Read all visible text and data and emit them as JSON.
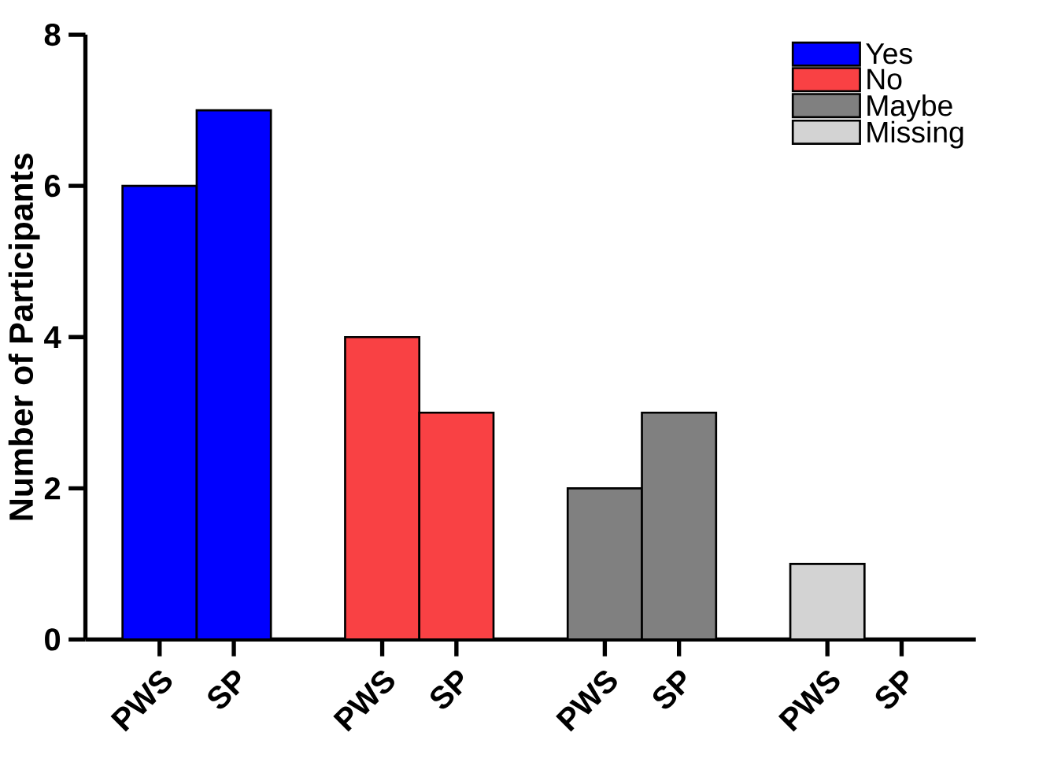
{
  "chart_data": {
    "type": "bar",
    "ylabel": "Number of Participants",
    "categories": [
      "PWS",
      "SP",
      "PWS",
      "SP",
      "PWS",
      "SP",
      "PWS",
      "SP"
    ],
    "series": [
      {
        "name": "Yes",
        "color": "#0000ff",
        "values": [
          6,
          7,
          null,
          null,
          null,
          null,
          null,
          null
        ]
      },
      {
        "name": "No",
        "color": "#f94144",
        "values": [
          null,
          null,
          4,
          3,
          null,
          null,
          null,
          null
        ]
      },
      {
        "name": "Maybe",
        "color": "#808080",
        "values": [
          null,
          null,
          null,
          null,
          2,
          3,
          null,
          null
        ]
      },
      {
        "name": "Missing",
        "color": "#d3d3d3",
        "values": [
          null,
          null,
          null,
          null,
          null,
          null,
          1,
          null
        ]
      }
    ],
    "ylim": [
      0,
      8
    ],
    "yticks": [
      0,
      2,
      4,
      6,
      8
    ],
    "grid": false,
    "legend": "top right"
  }
}
